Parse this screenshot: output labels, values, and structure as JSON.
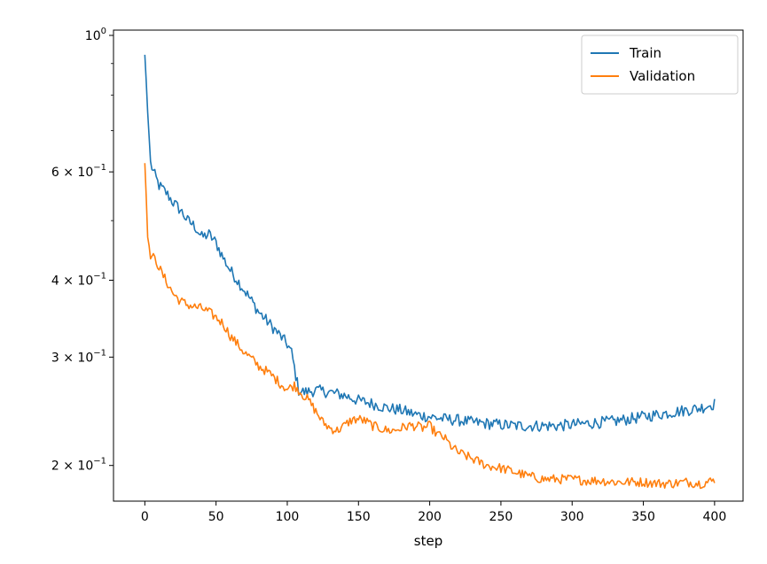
{
  "chart_data": {
    "type": "line",
    "title": "",
    "xlabel": "step",
    "ylabel": "",
    "xlim": [
      -22,
      420
    ],
    "ylim": [
      0.175,
      1.02
    ],
    "yscale": "log",
    "grid": false,
    "legend_position": "top-right",
    "x_ticks": [
      {
        "value": 0,
        "label": "0"
      },
      {
        "value": 50,
        "label": "50"
      },
      {
        "value": 100,
        "label": "100"
      },
      {
        "value": 150,
        "label": "150"
      },
      {
        "value": 200,
        "label": "200"
      },
      {
        "value": 250,
        "label": "250"
      },
      {
        "value": 300,
        "label": "300"
      },
      {
        "value": 350,
        "label": "350"
      },
      {
        "value": 400,
        "label": "400"
      }
    ],
    "y_ticks": [
      {
        "value": 1.0,
        "base": "10",
        "exp": "0",
        "coef": ""
      },
      {
        "value": 0.6,
        "base": "10",
        "exp": "−1",
        "coef": "6 × "
      },
      {
        "value": 0.4,
        "base": "10",
        "exp": "−1",
        "coef": "4 × "
      },
      {
        "value": 0.3,
        "base": "10",
        "exp": "−1",
        "coef": "3 × "
      },
      {
        "value": 0.2,
        "base": "10",
        "exp": "−1",
        "coef": "2 × "
      }
    ],
    "y_minor_ticks": [
      0.9,
      0.8,
      0.7,
      0.5
    ],
    "series": [
      {
        "name": "Train",
        "color": "#1f77b4",
        "points": [
          [
            0,
            0.93
          ],
          [
            2,
            0.75
          ],
          [
            4,
            0.62
          ],
          [
            6,
            0.6
          ],
          [
            10,
            0.57
          ],
          [
            15,
            0.555
          ],
          [
            20,
            0.535
          ],
          [
            25,
            0.52
          ],
          [
            30,
            0.5
          ],
          [
            35,
            0.49
          ],
          [
            40,
            0.47
          ],
          [
            45,
            0.475
          ],
          [
            50,
            0.46
          ],
          [
            55,
            0.435
          ],
          [
            60,
            0.415
          ],
          [
            65,
            0.4
          ],
          [
            70,
            0.385
          ],
          [
            75,
            0.37
          ],
          [
            80,
            0.355
          ],
          [
            85,
            0.345
          ],
          [
            90,
            0.335
          ],
          [
            95,
            0.325
          ],
          [
            100,
            0.315
          ],
          [
            103,
            0.305
          ],
          [
            106,
            0.28
          ],
          [
            108,
            0.265
          ],
          [
            112,
            0.263
          ],
          [
            120,
            0.265
          ],
          [
            130,
            0.263
          ],
          [
            140,
            0.26
          ],
          [
            150,
            0.255
          ],
          [
            160,
            0.252
          ],
          [
            170,
            0.248
          ],
          [
            180,
            0.246
          ],
          [
            190,
            0.242
          ],
          [
            200,
            0.24
          ],
          [
            210,
            0.238
          ],
          [
            220,
            0.237
          ],
          [
            230,
            0.235
          ],
          [
            240,
            0.234
          ],
          [
            250,
            0.233
          ],
          [
            260,
            0.232
          ],
          [
            270,
            0.232
          ],
          [
            280,
            0.232
          ],
          [
            290,
            0.232
          ],
          [
            300,
            0.233
          ],
          [
            310,
            0.234
          ],
          [
            320,
            0.235
          ],
          [
            330,
            0.236
          ],
          [
            340,
            0.238
          ],
          [
            350,
            0.24
          ],
          [
            360,
            0.242
          ],
          [
            370,
            0.244
          ],
          [
            380,
            0.246
          ],
          [
            390,
            0.248
          ],
          [
            400,
            0.252
          ]
        ]
      },
      {
        "name": "Validation",
        "color": "#ff7f0e",
        "points": [
          [
            0,
            0.62
          ],
          [
            2,
            0.47
          ],
          [
            4,
            0.44
          ],
          [
            8,
            0.43
          ],
          [
            12,
            0.41
          ],
          [
            16,
            0.395
          ],
          [
            20,
            0.38
          ],
          [
            25,
            0.37
          ],
          [
            30,
            0.365
          ],
          [
            35,
            0.362
          ],
          [
            40,
            0.36
          ],
          [
            45,
            0.355
          ],
          [
            50,
            0.348
          ],
          [
            55,
            0.34
          ],
          [
            60,
            0.325
          ],
          [
            65,
            0.315
          ],
          [
            70,
            0.305
          ],
          [
            75,
            0.298
          ],
          [
            80,
            0.29
          ],
          [
            85,
            0.285
          ],
          [
            90,
            0.279
          ],
          [
            95,
            0.272
          ],
          [
            100,
            0.266
          ],
          [
            105,
            0.27
          ],
          [
            110,
            0.262
          ],
          [
            115,
            0.255
          ],
          [
            120,
            0.245
          ],
          [
            125,
            0.235
          ],
          [
            130,
            0.23
          ],
          [
            135,
            0.228
          ],
          [
            140,
            0.232
          ],
          [
            145,
            0.237
          ],
          [
            150,
            0.238
          ],
          [
            155,
            0.236
          ],
          [
            160,
            0.232
          ],
          [
            165,
            0.23
          ],
          [
            170,
            0.228
          ],
          [
            175,
            0.228
          ],
          [
            180,
            0.23
          ],
          [
            185,
            0.232
          ],
          [
            190,
            0.232
          ],
          [
            195,
            0.23
          ],
          [
            200,
            0.232
          ],
          [
            205,
            0.225
          ],
          [
            210,
            0.222
          ],
          [
            215,
            0.215
          ],
          [
            220,
            0.21
          ],
          [
            230,
            0.205
          ],
          [
            240,
            0.2
          ],
          [
            250,
            0.198
          ],
          [
            260,
            0.195
          ],
          [
            270,
            0.192
          ],
          [
            280,
            0.19
          ],
          [
            290,
            0.19
          ],
          [
            300,
            0.19
          ],
          [
            310,
            0.189
          ],
          [
            320,
            0.189
          ],
          [
            330,
            0.188
          ],
          [
            340,
            0.188
          ],
          [
            350,
            0.188
          ],
          [
            360,
            0.187
          ],
          [
            370,
            0.187
          ],
          [
            380,
            0.188
          ],
          [
            390,
            0.187
          ],
          [
            400,
            0.189
          ]
        ]
      }
    ]
  }
}
